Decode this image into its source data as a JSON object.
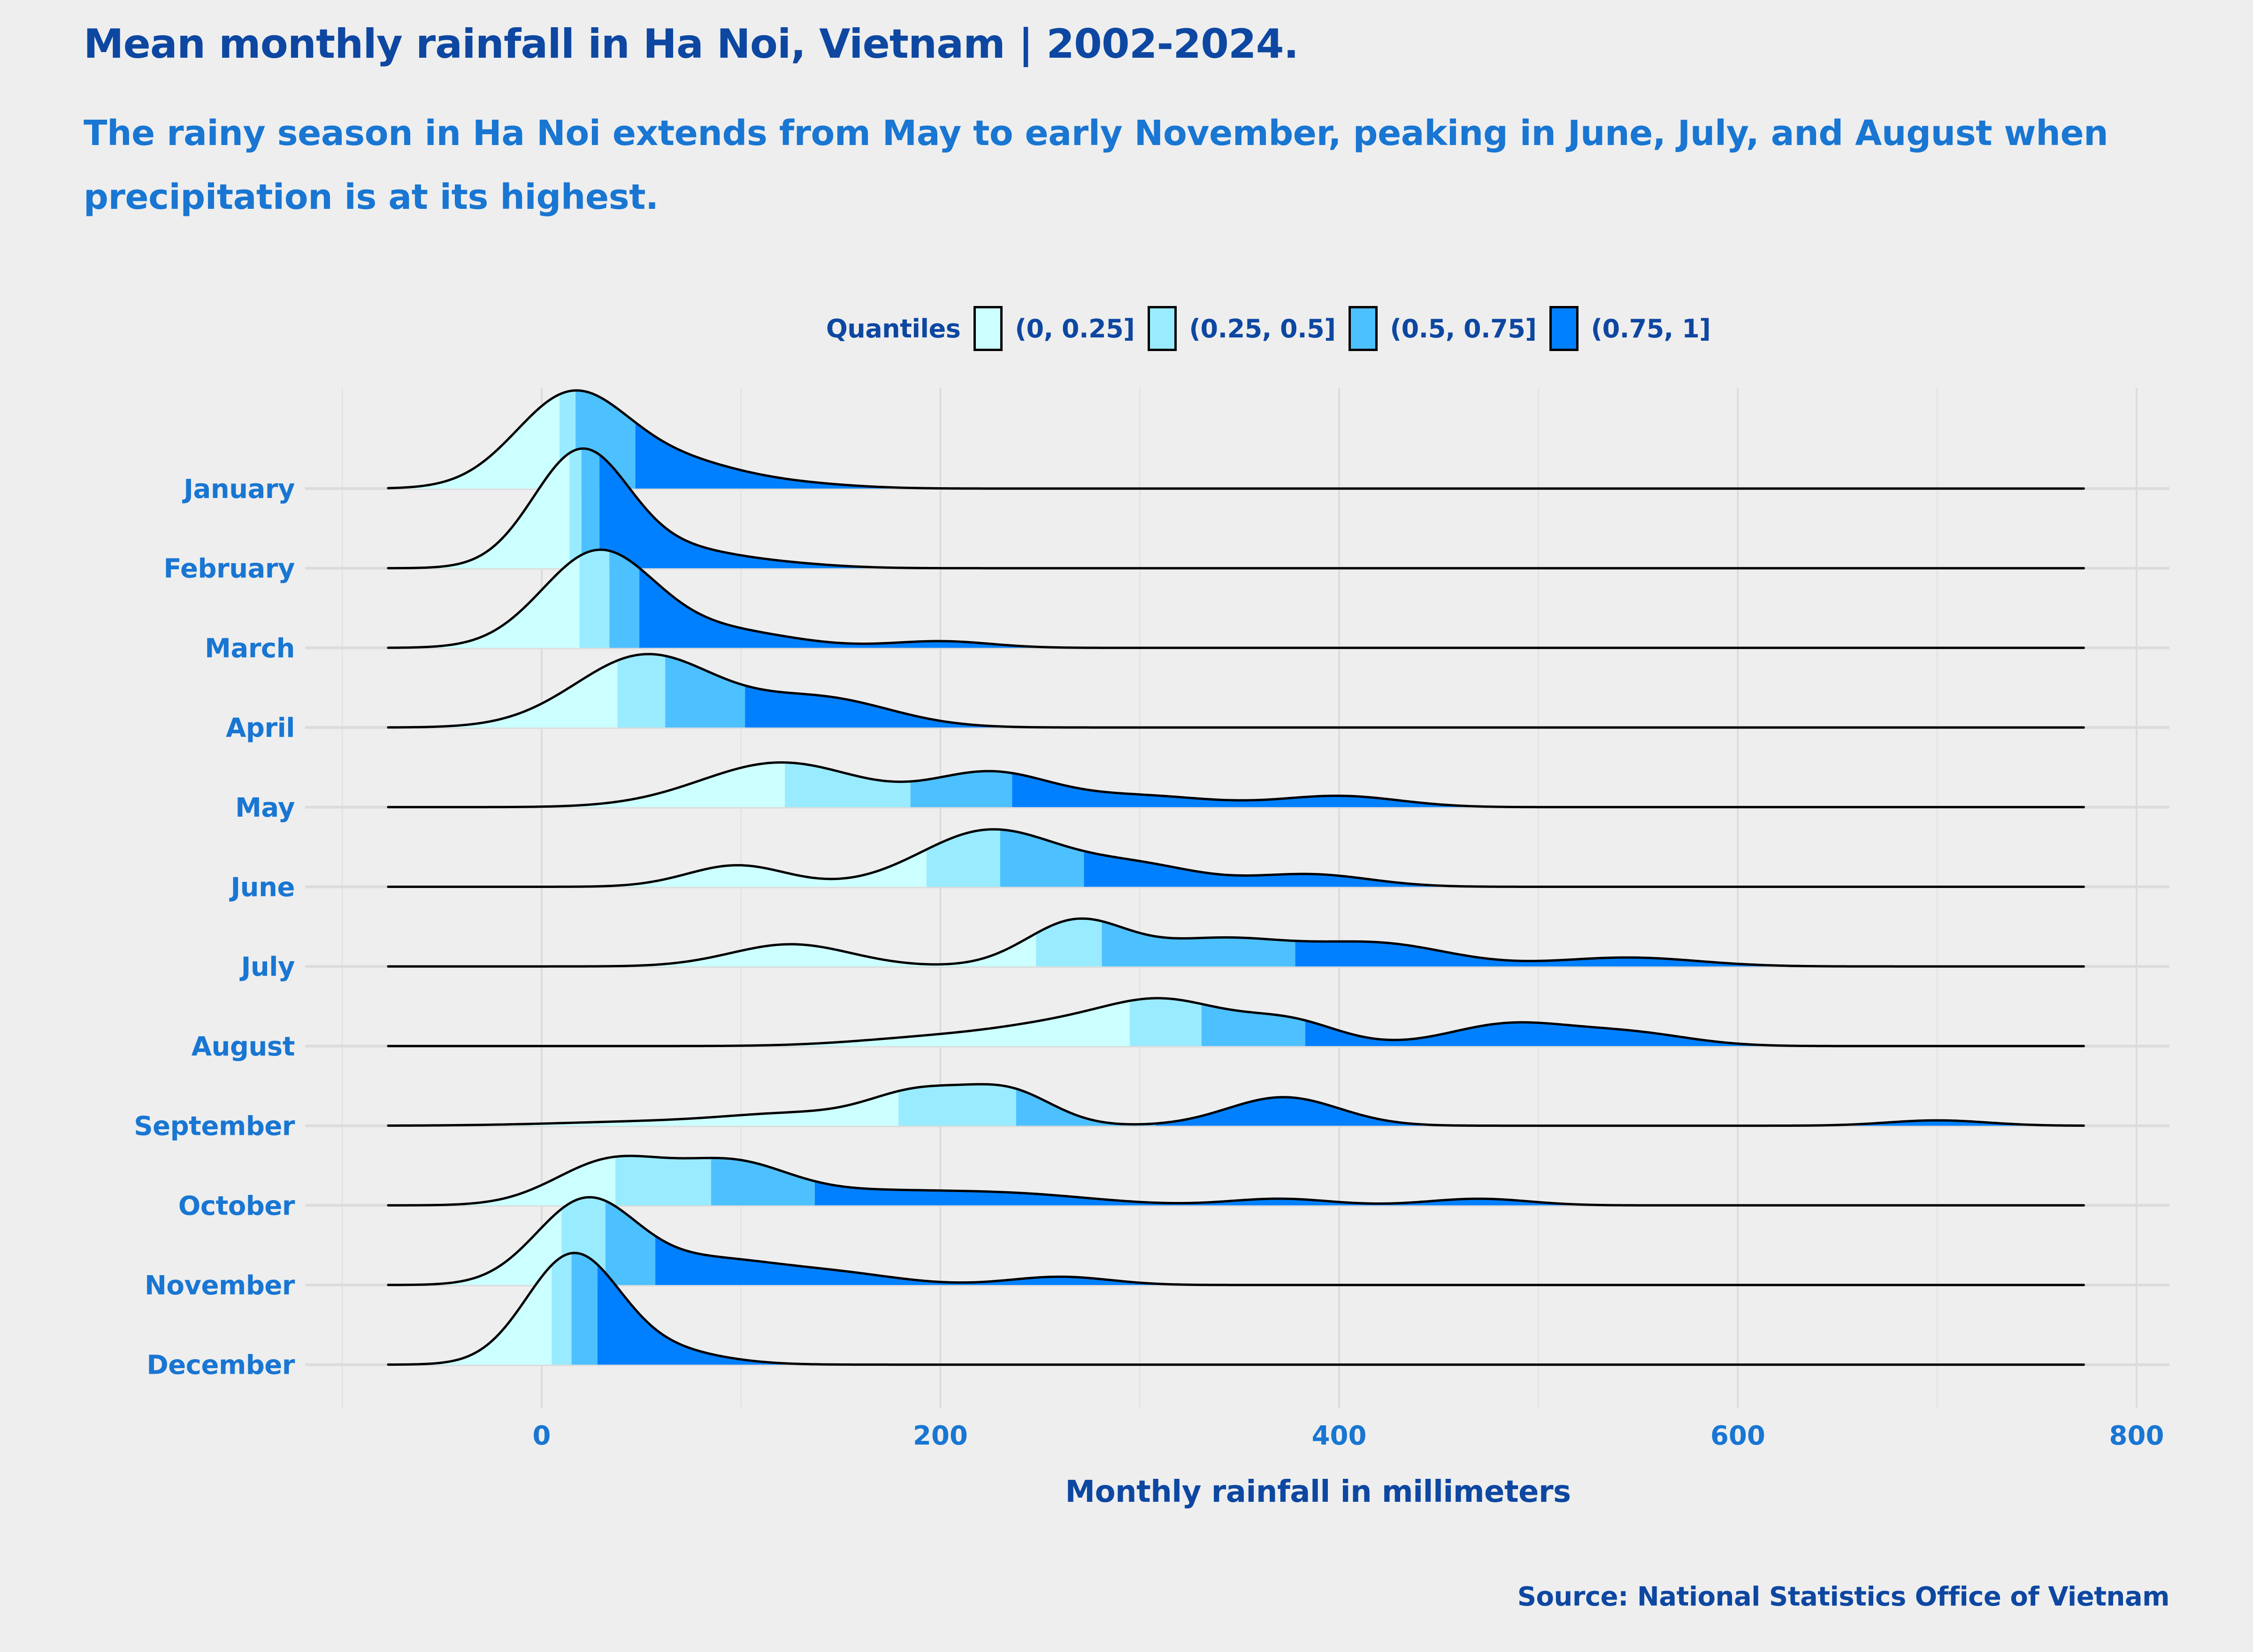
{
  "title": "Mean monthly rainfall in Ha Noi, Vietnam | 2002-2024.",
  "subtitle": "The rainy season in Ha Noi extends from May to early November, peaking in June, July, and August when precipitation is at its highest.",
  "caption": "Source: National Statistics Office of Vietnam",
  "legend": {
    "title": "Quantiles",
    "items": [
      {
        "label": "(0, 0.25]",
        "color": "#ccffff"
      },
      {
        "label": "(0.25, 0.5]",
        "color": "#99ebff"
      },
      {
        "label": "(0.5, 0.75]",
        "color": "#4dc0ff"
      },
      {
        "label": "(0.75, 1]",
        "color": "#0080ff"
      }
    ]
  },
  "chart_data": {
    "type": "ridgeline-density",
    "title": "Mean monthly rainfall in Ha Noi, Vietnam | 2002-2024.",
    "xlabel": "Monthly rainfall in millimeters",
    "ylabel": "",
    "xlim": [
      -125,
      815
    ],
    "density_range": [
      -77,
      774
    ],
    "x_ticks": [
      0,
      200,
      400,
      600,
      800
    ],
    "x_tick_labels": [
      "0",
      "200",
      "400",
      "600",
      "800"
    ],
    "grid": true,
    "legend_position": "top",
    "months": [
      {
        "name": "January",
        "quantiles": [
          9,
          17,
          47
        ],
        "peak_height": 1.23,
        "components": [
          [
            15,
            28,
            1.0
          ],
          [
            70,
            30,
            0.25
          ],
          [
            125,
            30,
            0.05
          ]
        ]
      },
      {
        "name": "February",
        "quantiles": [
          14,
          20,
          29
        ],
        "peak_height": 1.5,
        "components": [
          [
            20,
            24,
            1.0
          ],
          [
            70,
            25,
            0.12
          ],
          [
            110,
            30,
            0.05
          ]
        ]
      },
      {
        "name": "March",
        "quantiles": [
          19,
          34,
          49
        ],
        "peak_height": 1.23,
        "components": [
          [
            28,
            28,
            1.0
          ],
          [
            90,
            35,
            0.18
          ],
          [
            200,
            25,
            0.07
          ]
        ]
      },
      {
        "name": "April",
        "quantiles": [
          38,
          62,
          102
        ],
        "peak_height": 0.92,
        "components": [
          [
            52,
            35,
            1.0
          ],
          [
            140,
            35,
            0.4
          ]
        ]
      },
      {
        "name": "May",
        "quantiles": [
          122,
          185,
          236
        ],
        "peak_height": 0.56,
        "components": [
          [
            120,
            40,
            1.0
          ],
          [
            225,
            30,
            0.75
          ],
          [
            300,
            35,
            0.25
          ],
          [
            400,
            30,
            0.25
          ]
        ]
      },
      {
        "name": "June",
        "quantiles": [
          193,
          230,
          272
        ],
        "peak_height": 0.72,
        "components": [
          [
            98,
            25,
            0.38
          ],
          [
            225,
            35,
            1.0
          ],
          [
            300,
            30,
            0.35
          ],
          [
            385,
            30,
            0.22
          ]
        ]
      },
      {
        "name": "July",
        "quantiles": [
          248,
          281,
          378
        ],
        "peak_height": 0.6,
        "components": [
          [
            125,
            30,
            0.5
          ],
          [
            268,
            25,
            1.0
          ],
          [
            340,
            35,
            0.6
          ],
          [
            420,
            35,
            0.5
          ],
          [
            545,
            35,
            0.2
          ]
        ]
      },
      {
        "name": "August",
        "quantiles": [
          295,
          331,
          383
        ],
        "peak_height": 0.6,
        "components": [
          [
            200,
            40,
            0.2
          ],
          [
            265,
            35,
            0.45
          ],
          [
            315,
            30,
            0.9
          ],
          [
            375,
            25,
            0.55
          ],
          [
            485,
            30,
            0.5
          ],
          [
            545,
            30,
            0.3
          ]
        ]
      },
      {
        "name": "September",
        "quantiles": [
          179,
          238,
          308
        ],
        "peak_height": 0.52,
        "components": [
          [
            60,
            50,
            0.12
          ],
          [
            130,
            35,
            0.3
          ],
          [
            190,
            25,
            0.9
          ],
          [
            235,
            22,
            0.9
          ],
          [
            372,
            28,
            0.8
          ],
          [
            700,
            25,
            0.15
          ]
        ]
      },
      {
        "name": "October",
        "quantiles": [
          37,
          85,
          137
        ],
        "peak_height": 0.62,
        "components": [
          [
            35,
            28,
            1.0
          ],
          [
            95,
            28,
            0.85
          ],
          [
            160,
            45,
            0.3
          ],
          [
            240,
            40,
            0.22
          ],
          [
            370,
            25,
            0.15
          ],
          [
            470,
            25,
            0.15
          ]
        ]
      },
      {
        "name": "November",
        "quantiles": [
          10,
          32,
          57
        ],
        "peak_height": 1.1,
        "components": [
          [
            22,
            25,
            1.0
          ],
          [
            85,
            35,
            0.3
          ],
          [
            150,
            30,
            0.12
          ],
          [
            260,
            25,
            0.1
          ]
        ]
      },
      {
        "name": "December",
        "quantiles": [
          5,
          15,
          28
        ],
        "peak_height": 1.4,
        "components": [
          [
            15,
            23,
            1.0
          ],
          [
            55,
            30,
            0.15
          ]
        ]
      }
    ],
    "quantile_colors": [
      "#ccffff",
      "#99ebff",
      "#4dc0ff",
      "#0080ff"
    ]
  }
}
